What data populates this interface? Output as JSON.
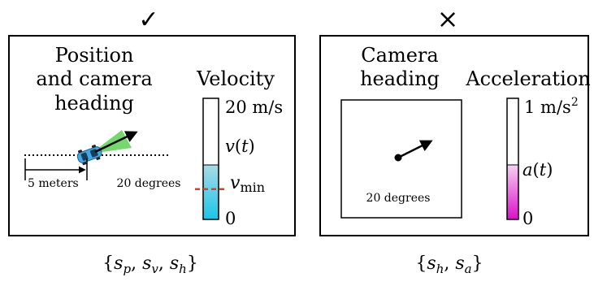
{
  "left_panel": {
    "verdict_symbol": "✓",
    "title": [
      "Position",
      "and camera",
      "heading"
    ],
    "velocity_title": "Velocity",
    "scale_label": "5 meters",
    "angle_label": "20 degrees",
    "bar_top_label": "20 m/s",
    "bar_value_label": "v(t)",
    "bar_threshold_label_base": "v",
    "bar_threshold_label_sub": "min",
    "bar_bottom_label": "0",
    "bar_fill_fraction": 0.45,
    "threshold_fraction": 0.25,
    "state_set": "{sp, sv, sh}",
    "state_items": [
      {
        "base": "s",
        "sub": "p"
      },
      {
        "base": "s",
        "sub": "v"
      },
      {
        "base": "s",
        "sub": "h"
      }
    ],
    "colors": {
      "bar_fill_top": "#a8dbe7",
      "bar_fill_bottom": "#19c6e8",
      "threshold": "#e53b1f",
      "car": "#3fa9e8",
      "camera_cone": "#5cd154"
    }
  },
  "right_panel": {
    "verdict_symbol": "×",
    "title": [
      "Camera",
      "heading"
    ],
    "acceleration_title": "Acceleration",
    "angle_label": "20 degrees",
    "bar_top_label_base": "1 m/s",
    "bar_top_label_sup": "2",
    "bar_value_label": "a(t)",
    "bar_bottom_label": "0",
    "bar_fill_fraction": 0.45,
    "state_set": "{sh, sa}",
    "state_items": [
      {
        "base": "s",
        "sub": "h"
      },
      {
        "base": "s",
        "sub": "a"
      }
    ],
    "colors": {
      "bar_fill_top": "#f5d2f1",
      "bar_fill_bottom": "#dc0fcb"
    }
  }
}
